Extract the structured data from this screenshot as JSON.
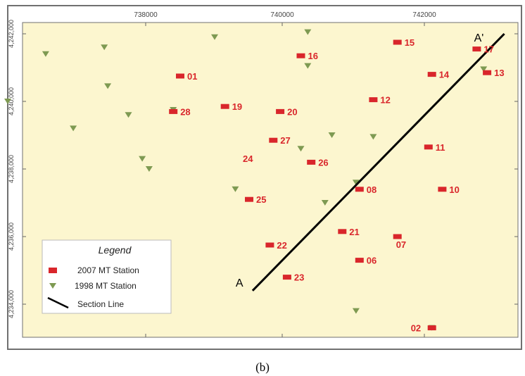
{
  "map": {
    "x_ticks": [
      "738000",
      "740000",
      "742000"
    ],
    "y_ticks": [
      "4,242,000",
      "4,240,000",
      "4,238,000",
      "4,236,000",
      "4,234,000"
    ],
    "colors": {
      "background": "#fcf6cf",
      "station_2007": "#d9262b",
      "station_1998": "#7e9a52",
      "section_line": "#000000"
    },
    "section_line": {
      "start_label": "A",
      "end_label": "A'",
      "start": {
        "x": 739550,
        "y": 4234400
      },
      "end": {
        "x": 743200,
        "y": 4242000
      }
    },
    "stations_2007": [
      {
        "id": "01",
        "x": 738500,
        "y": 4240750
      },
      {
        "id": "02",
        "x": 742150,
        "y": 4233300
      },
      {
        "id": "06",
        "x": 741100,
        "y": 4235300
      },
      {
        "id": "07",
        "x": 741650,
        "y": 4236000
      },
      {
        "id": "08",
        "x": 741100,
        "y": 4237400
      },
      {
        "id": "10",
        "x": 742300,
        "y": 4237400
      },
      {
        "id": "11",
        "x": 742100,
        "y": 4238650
      },
      {
        "id": "12",
        "x": 741300,
        "y": 4240050
      },
      {
        "id": "13",
        "x": 742950,
        "y": 4240850
      },
      {
        "id": "14",
        "x": 742150,
        "y": 4240800
      },
      {
        "id": "15",
        "x": 741650,
        "y": 4241750
      },
      {
        "id": "16",
        "x": 740250,
        "y": 4241350
      },
      {
        "id": "17",
        "x": 742800,
        "y": 4241550
      },
      {
        "id": "19",
        "x": 739150,
        "y": 4239850
      },
      {
        "id": "20",
        "x": 739950,
        "y": 4239700
      },
      {
        "id": "21",
        "x": 740850,
        "y": 4236150
      },
      {
        "id": "22",
        "x": 739800,
        "y": 4235750
      },
      {
        "id": "23",
        "x": 740050,
        "y": 4234800
      },
      {
        "id": "24",
        "x": null,
        "y": null,
        "label_only": true
      },
      {
        "id": "25",
        "x": 739500,
        "y": 4237100
      },
      {
        "id": "26",
        "x": 740400,
        "y": 4238200
      },
      {
        "id": "27",
        "x": 739850,
        "y": 4238850
      },
      {
        "id": "28",
        "x": 738400,
        "y": 4239700
      }
    ],
    "stations_1998": [
      {
        "x": 736000,
        "y": 4240000
      },
      {
        "x": 736550,
        "y": 4241400
      },
      {
        "x": 737400,
        "y": 4241600
      },
      {
        "x": 737450,
        "y": 4240450
      },
      {
        "x": 737750,
        "y": 4239600
      },
      {
        "x": 736950,
        "y": 4239200
      },
      {
        "x": 737950,
        "y": 4238300
      },
      {
        "x": 738050,
        "y": 4238000
      },
      {
        "x": 739000,
        "y": 4241900
      },
      {
        "x": 740350,
        "y": 4242050
      },
      {
        "x": 740350,
        "y": 4241050
      },
      {
        "x": 740700,
        "y": 4239000
      },
      {
        "x": 741300,
        "y": 4238950
      },
      {
        "x": 740250,
        "y": 4238600
      },
      {
        "x": 739300,
        "y": 4237400
      },
      {
        "x": 740600,
        "y": 4237000
      },
      {
        "x": 741050,
        "y": 4237600
      },
      {
        "x": 741050,
        "y": 4233800
      },
      {
        "x": 742900,
        "y": 4240950
      },
      {
        "x": 742150,
        "y": 4233300
      },
      {
        "x": 738400,
        "y": 4239750
      }
    ],
    "legend": {
      "title": "Legend",
      "items": [
        {
          "label": "2007 MT Station",
          "symbol": "station-2007"
        },
        {
          "label": "1998 MT Station",
          "symbol": "station-1998"
        },
        {
          "label": "Section Line",
          "symbol": "section-line"
        }
      ]
    },
    "caption": "(b)"
  }
}
